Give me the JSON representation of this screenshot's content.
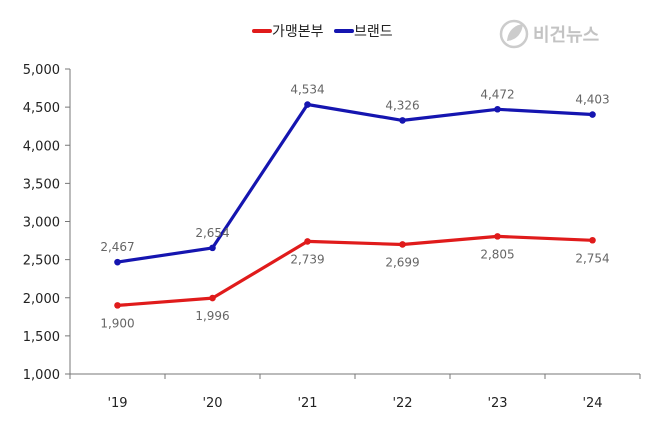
{
  "watermark": {
    "text": "비건뉴스",
    "icon": "leaf-drop-icon"
  },
  "chart_data": {
    "type": "line",
    "title": "",
    "xlabel": "",
    "ylabel": "",
    "categories": [
      "'19",
      "'20",
      "'21",
      "'22",
      "'23",
      "'24"
    ],
    "ylim": [
      1000,
      5000
    ],
    "yticks": [
      "1,000",
      "1,500",
      "2,000",
      "2,500",
      "3,000",
      "3,500",
      "4,000",
      "4,500",
      "5,000"
    ],
    "grid": false,
    "legend_position": "top",
    "series": [
      {
        "name": "가맹본부",
        "color": "#e01b1b",
        "values": [
          1900,
          1996,
          2739,
          2699,
          2805,
          2754
        ],
        "labels": [
          "1,900",
          "1,996",
          "2,739",
          "2,699",
          "2,805",
          "2,754"
        ],
        "label_position": "below"
      },
      {
        "name": "브랜드",
        "color": "#1515b0",
        "values": [
          2467,
          2654,
          4534,
          4326,
          4472,
          4403
        ],
        "labels": [
          "2,467",
          "2,654",
          "4,534",
          "4,326",
          "4,472",
          "4,403"
        ],
        "label_position": "above"
      }
    ]
  }
}
